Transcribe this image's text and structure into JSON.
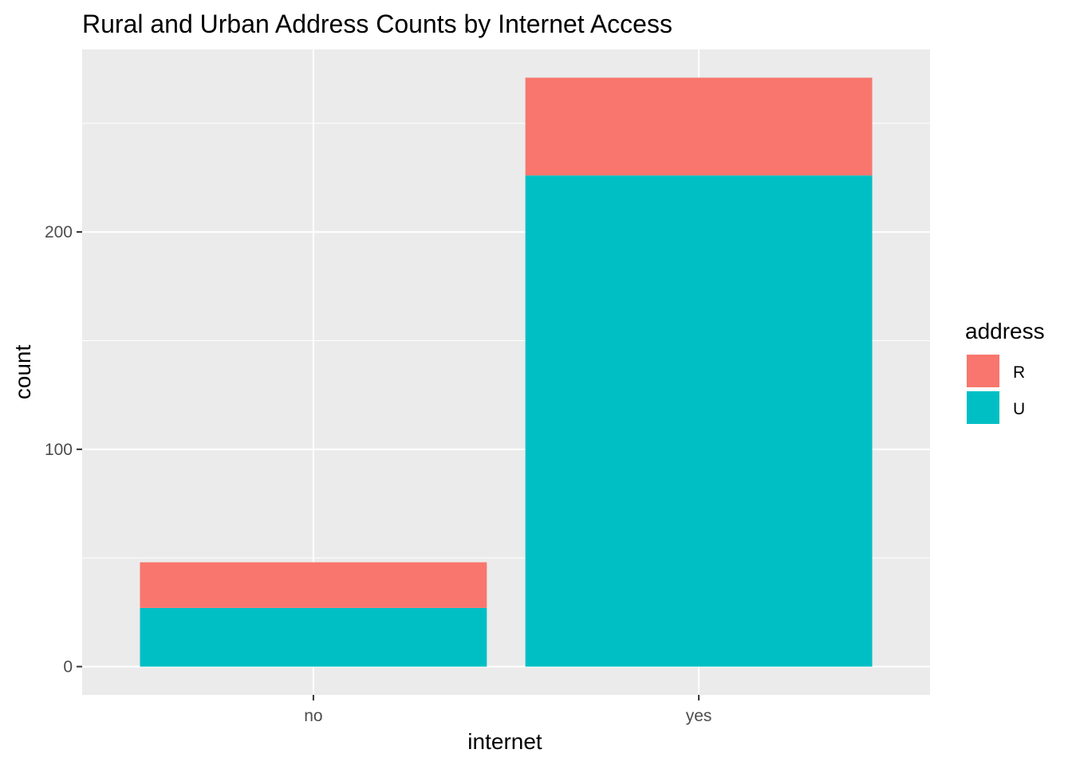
{
  "chart_data": {
    "type": "bar",
    "stacked": true,
    "title": "Rural and Urban Address Counts by Internet Access",
    "xlabel": "internet",
    "ylabel": "count",
    "categories": [
      "no",
      "yes"
    ],
    "series": [
      {
        "name": "R",
        "values": [
          21,
          45
        ],
        "color": "#F8766D"
      },
      {
        "name": "U",
        "values": [
          27,
          226
        ],
        "color": "#00BFC4"
      }
    ],
    "ylim": [
      -13,
      284
    ],
    "yticks": [
      0,
      100,
      200
    ],
    "grid": true,
    "legend": {
      "title": "address",
      "position": "right",
      "entries": [
        "R",
        "U"
      ]
    },
    "panel_color": "#EBEBEB"
  }
}
